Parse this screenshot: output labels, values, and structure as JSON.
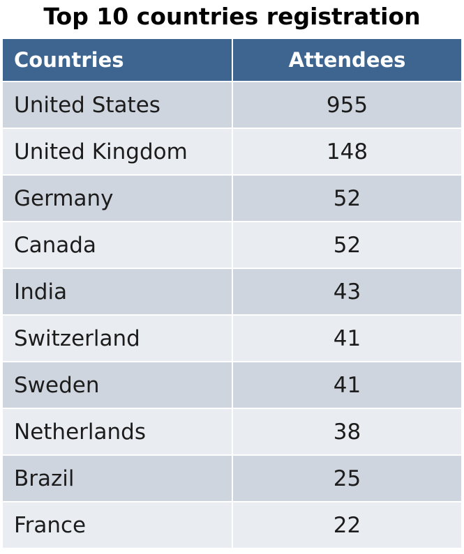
{
  "chart_data": {
    "type": "table",
    "title": "Top 10 countries registration",
    "columns": [
      "Countries",
      "Attendees"
    ],
    "categories": [
      "United States",
      "United Kingdom",
      "Germany",
      "Canada",
      "India",
      "Switzerland",
      "Sweden",
      "Netherlands",
      "Brazil",
      "France"
    ],
    "values": [
      955,
      148,
      52,
      52,
      43,
      41,
      41,
      38,
      25,
      22
    ]
  },
  "colors": {
    "header_bg": "#3e6590",
    "row_dark": "#cfd5de",
    "row_light": "#e9ecf1"
  }
}
